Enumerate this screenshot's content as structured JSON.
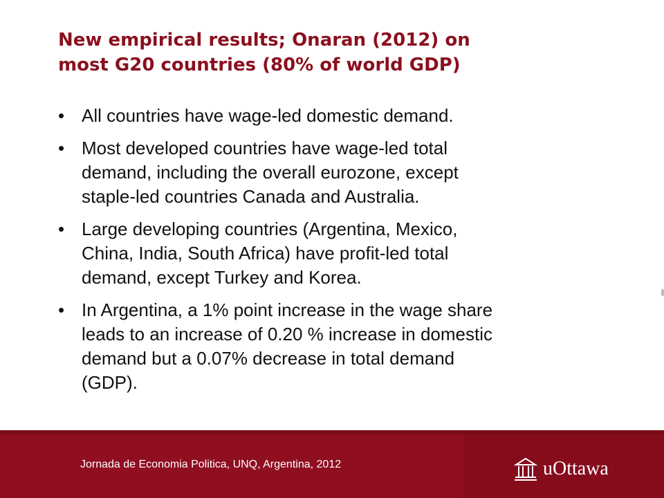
{
  "slide": {
    "title_lines": [
      "New empirical results; Onaran (2012) on",
      "most  G20 countries (80% of world GDP)"
    ],
    "bullet_glyph": "•",
    "bullets": [
      {
        "lines": [
          "All countries have wage-led domestic demand."
        ]
      },
      {
        "lines": [
          "Most developed countries have wage-led total",
          "demand, including the overall eurozone, except",
          "staple-led countries Canada and Australia."
        ]
      },
      {
        "lines": [
          "Large developing countries (Argentina, Mexico,",
          "China, India, South Africa) have profit-led total",
          "demand, except Turkey and Korea."
        ]
      },
      {
        "lines": [
          "In Argentina, a 1% point increase in the wage share",
          "leads to an increase of 0.20 % increase in domestic",
          "demand but a 0.07% decrease in total demand",
          "(GDP)."
        ]
      }
    ]
  },
  "footer": {
    "text": "Jornada de Economia Politica, UNQ, Argentina, 2012",
    "logo_text": "uOttawa",
    "logo_icon": "university-building-icon"
  },
  "colors": {
    "title": "#8b0f1e",
    "footer_background": "#8f0e1f",
    "body_text": "#111111"
  }
}
